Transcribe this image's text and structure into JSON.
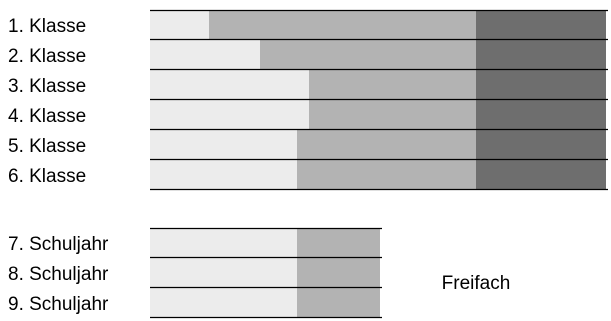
{
  "colors": {
    "light": "#ececec",
    "mid": "#b3b3b3",
    "dark": "#6e6e6e",
    "line": "#000000",
    "background": "#ffffff"
  },
  "chart_data": {
    "type": "bar",
    "orientation": "horizontal",
    "stacked": true,
    "categories": [
      "1. Klasse",
      "2. Klasse",
      "3. Klasse",
      "4. Klasse",
      "5. Klasse",
      "6. Klasse",
      "7. Schuljahr",
      "8. Schuljahr",
      "9. Schuljahr"
    ],
    "groups": [
      {
        "rows": [
          {
            "label": "1. Klasse",
            "segments": [
              {
                "tone": "light",
                "value": 59
              },
              {
                "tone": "mid",
                "value": 267
              },
              {
                "tone": "dark",
                "value": 130
              }
            ]
          },
          {
            "label": "2. Klasse",
            "segments": [
              {
                "tone": "light",
                "value": 110
              },
              {
                "tone": "mid",
                "value": 216
              },
              {
                "tone": "dark",
                "value": 130
              }
            ]
          },
          {
            "label": "3. Klasse",
            "segments": [
              {
                "tone": "light",
                "value": 159
              },
              {
                "tone": "mid",
                "value": 167
              },
              {
                "tone": "dark",
                "value": 130
              }
            ]
          },
          {
            "label": "4. Klasse",
            "segments": [
              {
                "tone": "light",
                "value": 159
              },
              {
                "tone": "mid",
                "value": 167
              },
              {
                "tone": "dark",
                "value": 130
              }
            ]
          },
          {
            "label": "5. Klasse",
            "segments": [
              {
                "tone": "light",
                "value": 147
              },
              {
                "tone": "mid",
                "value": 179
              },
              {
                "tone": "dark",
                "value": 130
              }
            ]
          },
          {
            "label": "6. Klasse",
            "segments": [
              {
                "tone": "light",
                "value": 147
              },
              {
                "tone": "mid",
                "value": 179
              },
              {
                "tone": "dark",
                "value": 130
              }
            ]
          }
        ]
      },
      {
        "rows": [
          {
            "label": "7. Schuljahr",
            "segments": [
              {
                "tone": "light",
                "value": 147
              },
              {
                "tone": "mid",
                "value": 83
              }
            ]
          },
          {
            "label": "8. Schuljahr",
            "segments": [
              {
                "tone": "light",
                "value": 147
              },
              {
                "tone": "mid",
                "value": 83
              }
            ]
          },
          {
            "label": "9. Schuljahr",
            "segments": [
              {
                "tone": "light",
                "value": 147
              },
              {
                "tone": "mid",
                "value": 83
              }
            ]
          }
        ]
      }
    ],
    "annotations": [
      {
        "text": "Freifach"
      }
    ],
    "grid": false,
    "legend": "none"
  }
}
